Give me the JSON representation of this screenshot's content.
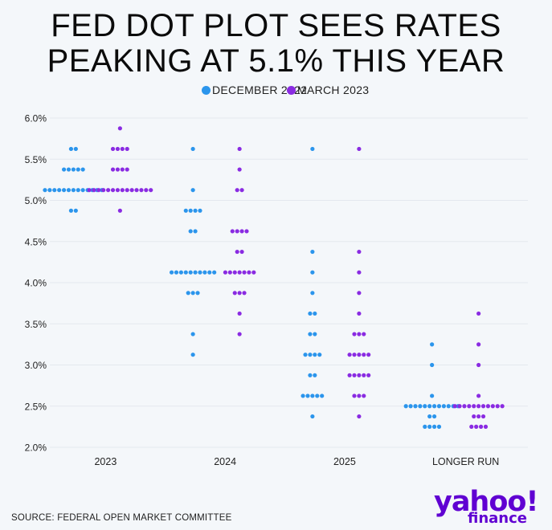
{
  "header": {
    "title_line1": "FED DOT PLOT SEES RATES",
    "title_line2": "PEAKING AT 5.1% THIS YEAR"
  },
  "legend": [
    {
      "label": "DECEMBER 2022",
      "color": "#2b95ec"
    },
    {
      "label": "MARCH 2023",
      "color": "#8a2be2"
    }
  ],
  "footer": {
    "source": "SOURCE: FEDERAL OPEN MARKET COMMITTEE",
    "logo_word": "yahoo!",
    "logo_sub": "finance"
  },
  "chart_data": {
    "type": "scatter",
    "title": "FED DOT PLOT SEES RATES PEAKING AT 5.1% THIS YEAR",
    "xlabel": "",
    "ylabel": "",
    "ylim": [
      2.0,
      6.0
    ],
    "yticks": [
      "6.0%",
      "5.5%",
      "5.0%",
      "4.5%",
      "4.0%",
      "3.5%",
      "3.0%",
      "2.5%",
      "2.0%"
    ],
    "grid": true,
    "legend_position": "top-center",
    "categories": [
      "2023",
      "2024",
      "2025",
      "LONGER RUN"
    ],
    "series": [
      {
        "name": "DECEMBER 2022",
        "color": "#2b95ec",
        "groups": [
          [
            [
              5.625,
              2
            ],
            [
              5.375,
              5
            ],
            [
              5.125,
              13
            ],
            [
              4.875,
              2
            ]
          ],
          [
            [
              5.625,
              1
            ],
            [
              5.125,
              1
            ],
            [
              4.875,
              4
            ],
            [
              4.625,
              2
            ],
            [
              4.125,
              10
            ],
            [
              3.875,
              3
            ],
            [
              3.375,
              1
            ],
            [
              3.125,
              1
            ]
          ],
          [
            [
              5.625,
              1
            ],
            [
              4.375,
              1
            ],
            [
              4.125,
              1
            ],
            [
              3.875,
              1
            ],
            [
              3.625,
              2
            ],
            [
              3.375,
              2
            ],
            [
              3.125,
              4
            ],
            [
              2.875,
              2
            ],
            [
              2.625,
              5
            ],
            [
              2.375,
              1
            ]
          ],
          [
            [
              3.25,
              1
            ],
            [
              3.0,
              1
            ],
            [
              2.625,
              1
            ],
            [
              2.5,
              12
            ],
            [
              2.375,
              2
            ],
            [
              2.25,
              4
            ]
          ]
        ]
      },
      {
        "name": "MARCH 2023",
        "color": "#8a2be2",
        "groups": [
          [
            [
              5.875,
              1
            ],
            [
              5.625,
              4
            ],
            [
              5.375,
              4
            ],
            [
              5.125,
              14
            ],
            [
              4.875,
              1
            ]
          ],
          [
            [
              5.625,
              1
            ],
            [
              5.375,
              1
            ],
            [
              5.125,
              2
            ],
            [
              4.625,
              4
            ],
            [
              4.375,
              2
            ],
            [
              4.125,
              7
            ],
            [
              3.875,
              3
            ],
            [
              3.625,
              1
            ],
            [
              3.375,
              1
            ]
          ],
          [
            [
              5.625,
              1
            ],
            [
              4.375,
              1
            ],
            [
              4.125,
              1
            ],
            [
              3.875,
              1
            ],
            [
              3.625,
              1
            ],
            [
              3.375,
              3
            ],
            [
              3.125,
              5
            ],
            [
              2.875,
              5
            ],
            [
              2.625,
              3
            ],
            [
              2.375,
              1
            ]
          ],
          [
            [
              3.625,
              1
            ],
            [
              3.25,
              1
            ],
            [
              3.0,
              1
            ],
            [
              2.625,
              1
            ],
            [
              2.5,
              11
            ],
            [
              2.375,
              3
            ],
            [
              2.25,
              4
            ]
          ]
        ]
      }
    ]
  }
}
